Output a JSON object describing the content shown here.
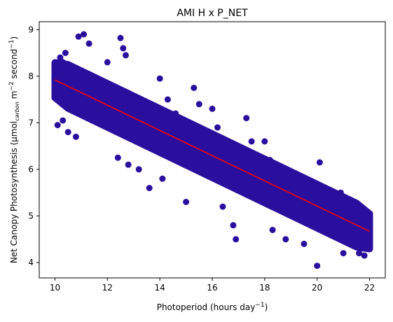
{
  "chart_data": {
    "type": "scatter",
    "title": "AMI H x P_NET",
    "xlabel": {
      "base": "Photoperiod (hours day",
      "sup": "−1",
      "end": ")"
    },
    "ylabel": {
      "t1": "Net Canopy Photosynthesis (μmol",
      "sub": "carbon",
      "t2": " m",
      "sup1": "−2",
      "t3": " second",
      "sup2": "−1",
      "t4": ")"
    },
    "xlim": [
      9.4,
      22.6
    ],
    "ylim": [
      3.67,
      9.17
    ],
    "xticks": [
      10,
      12,
      14,
      16,
      18,
      20,
      22
    ],
    "yticks": [
      4,
      5,
      6,
      7,
      8,
      9
    ],
    "grid": false,
    "series": [
      {
        "color": "#2a0f9e",
        "points": [
          [
            10.0,
            7.9
          ],
          [
            10.1,
            8.0
          ],
          [
            10.2,
            8.4
          ],
          [
            10.3,
            8.3
          ],
          [
            10.4,
            8.5
          ],
          [
            10.1,
            6.95
          ],
          [
            10.3,
            7.05
          ],
          [
            10.5,
            6.8
          ],
          [
            10.5,
            7.4
          ],
          [
            10.9,
            8.85
          ],
          [
            11.1,
            8.9
          ],
          [
            11.3,
            8.7
          ],
          [
            10.8,
            6.7
          ],
          [
            11.2,
            7.2
          ],
          [
            12.0,
            8.3
          ],
          [
            12.5,
            8.82
          ],
          [
            12.6,
            8.6
          ],
          [
            12.7,
            8.45
          ],
          [
            12.4,
            6.25
          ],
          [
            13.2,
            6.0
          ],
          [
            12.8,
            6.1
          ],
          [
            13.0,
            7.1
          ],
          [
            14.0,
            7.95
          ],
          [
            14.3,
            7.5
          ],
          [
            14.6,
            7.2
          ],
          [
            13.6,
            5.6
          ],
          [
            14.1,
            5.8
          ],
          [
            15.0,
            6.7
          ],
          [
            15.3,
            7.75
          ],
          [
            15.5,
            7.4
          ],
          [
            15.0,
            5.3
          ],
          [
            16.0,
            7.3
          ],
          [
            16.2,
            6.9
          ],
          [
            16.4,
            5.2
          ],
          [
            17.0,
            6.5
          ],
          [
            17.3,
            7.1
          ],
          [
            17.5,
            6.6
          ],
          [
            16.8,
            4.8
          ],
          [
            16.9,
            4.5
          ],
          [
            18.0,
            6.6
          ],
          [
            18.2,
            6.2
          ],
          [
            18.5,
            5.9
          ],
          [
            18.3,
            4.7
          ],
          [
            18.8,
            4.5
          ],
          [
            18.8,
            6.0
          ],
          [
            19.3,
            5.0
          ],
          [
            19.5,
            4.4
          ],
          [
            20.0,
            3.93
          ],
          [
            20.1,
            6.15
          ],
          [
            20.0,
            5.45
          ],
          [
            20.5,
            4.9
          ],
          [
            20.9,
            5.5
          ],
          [
            21.2,
            4.6
          ],
          [
            21.0,
            4.2
          ],
          [
            21.5,
            4.8
          ],
          [
            21.6,
            4.2
          ],
          [
            21.8,
            4.15
          ],
          [
            21.9,
            4.5
          ],
          [
            22.0,
            4.7
          ]
        ]
      }
    ],
    "band": {
      "intercept": 10.62,
      "slope": -0.2705,
      "halfwidth": 0.47
    },
    "fit_line": {
      "color": "#ff0000",
      "x": [
        10.0,
        22.0
      ],
      "y": [
        7.92,
        4.67
      ]
    }
  }
}
